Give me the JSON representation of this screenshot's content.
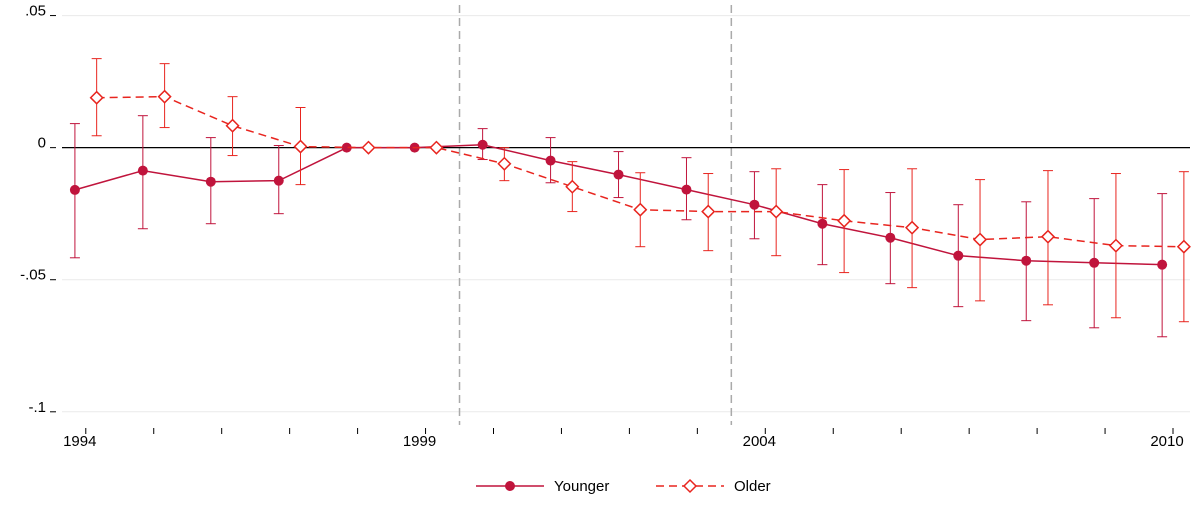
{
  "chart_data": {
    "type": "line",
    "x": [
      1994,
      1995,
      1996,
      1997,
      1998,
      1999,
      2000,
      2001,
      2002,
      2003,
      2004,
      2005,
      2006,
      2007,
      2008,
      2009,
      2010
    ],
    "series": [
      {
        "name": "Younger",
        "color": "#c0143c",
        "marker": "circle",
        "dash": false,
        "values": [
          -0.016,
          -0.0087,
          -0.0129,
          -0.0125,
          0,
          0,
          0.0011,
          -0.0049,
          -0.0102,
          -0.0159,
          -0.0216,
          -0.0288,
          -0.0341,
          -0.0409,
          -0.0428,
          -0.0436,
          -0.0443
        ],
        "upper": [
          0.0091,
          0.0121,
          0.0038,
          0.0008,
          null,
          null,
          0.0072,
          0.0038,
          -0.0015,
          -0.0038,
          -0.0091,
          -0.014,
          -0.017,
          -0.0216,
          -0.0205,
          -0.0193,
          -0.0174
        ],
        "lower": [
          -0.0417,
          -0.0307,
          -0.0288,
          -0.025,
          null,
          null,
          -0.0045,
          -0.0133,
          -0.0189,
          -0.0273,
          -0.0345,
          -0.0443,
          -0.0515,
          -0.0602,
          -0.0655,
          -0.0682,
          -0.0716
        ]
      },
      {
        "name": "Older",
        "color": "#e8251f",
        "marker": "diamond",
        "dash": true,
        "values": [
          0.0189,
          0.0193,
          0.0083,
          0.0004,
          0,
          0,
          -0.0061,
          -0.0148,
          -0.0235,
          -0.0242,
          -0.0242,
          -0.0277,
          -0.0303,
          -0.0348,
          -0.0337,
          -0.0371,
          -0.0375
        ],
        "upper": [
          0.0337,
          0.0318,
          0.0193,
          0.0152,
          null,
          null,
          0,
          -0.0053,
          -0.0095,
          -0.0098,
          -0.008,
          -0.0083,
          -0.008,
          -0.0121,
          -0.0087,
          -0.0098,
          -0.0091
        ],
        "lower": [
          0.0045,
          0.0076,
          -0.003,
          -0.014,
          null,
          null,
          -0.0125,
          -0.0242,
          -0.0375,
          -0.039,
          -0.0409,
          -0.0473,
          -0.053,
          -0.058,
          -0.0595,
          -0.0644,
          -0.0659
        ]
      }
    ],
    "xlim": [
      1993.65,
      2010.25
    ],
    "ylim": [
      -0.105,
      0.054
    ],
    "xticks": [
      1994,
      1999,
      2004,
      2010
    ],
    "xminor_ticks": [
      1995,
      1996,
      1997,
      1998,
      2000,
      2001,
      2002,
      2003,
      2005,
      2006,
      2007,
      2008,
      2009
    ],
    "yticks": [
      {
        "value": 0.05,
        "label": ".05"
      },
      0,
      {
        "value": -0.05,
        "label": "-.05"
      },
      {
        "value": -0.1,
        "label": "-.1"
      }
    ],
    "vlines": [
      1999.5,
      2003.5
    ],
    "hline": 0,
    "grid": true,
    "legend": "bottom"
  }
}
